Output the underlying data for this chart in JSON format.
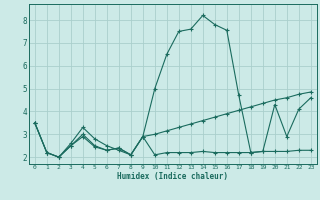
{
  "xlabel": "Humidex (Indice chaleur)",
  "background_color": "#cceae7",
  "grid_color": "#aacfcc",
  "line_color": "#1a6b5e",
  "xlim": [
    -0.5,
    23.5
  ],
  "ylim": [
    1.7,
    8.7
  ],
  "yticks": [
    2,
    3,
    4,
    5,
    6,
    7,
    8
  ],
  "xticks": [
    0,
    1,
    2,
    3,
    4,
    5,
    6,
    7,
    8,
    9,
    10,
    11,
    12,
    13,
    14,
    15,
    16,
    17,
    18,
    19,
    20,
    21,
    22,
    23
  ],
  "series": [
    [
      3.5,
      2.2,
      2.0,
      2.6,
      3.3,
      2.8,
      2.5,
      2.3,
      2.1,
      2.9,
      5.0,
      6.5,
      7.5,
      7.6,
      8.2,
      7.8,
      7.55,
      4.7,
      2.2,
      2.25,
      4.3,
      2.9,
      4.1,
      4.6
    ],
    [
      3.5,
      2.2,
      2.0,
      2.5,
      3.0,
      2.5,
      2.3,
      2.4,
      2.1,
      2.9,
      3.0,
      3.15,
      3.3,
      3.45,
      3.6,
      3.75,
      3.9,
      4.05,
      4.2,
      4.35,
      4.5,
      4.6,
      4.75,
      4.85
    ],
    [
      3.5,
      2.2,
      2.0,
      2.5,
      2.9,
      2.45,
      2.3,
      2.4,
      2.1,
      2.9,
      2.1,
      2.2,
      2.2,
      2.2,
      2.25,
      2.2,
      2.2,
      2.2,
      2.2,
      2.25,
      2.25,
      2.25,
      2.3,
      2.3
    ]
  ]
}
